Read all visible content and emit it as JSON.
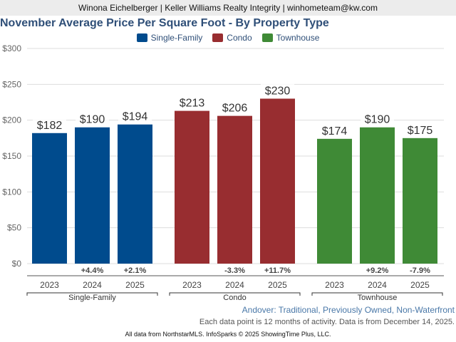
{
  "banner": "Winona Eichelberger | Keller Williams Realty Integrity | winhometeam@kw.com",
  "chart_data": {
    "type": "bar",
    "title": "November Average Price Per Square Foot - By Property Type",
    "xlabel": "",
    "ylabel": "",
    "ylim": [
      0,
      300
    ],
    "yticks": [
      0,
      50,
      100,
      150,
      200,
      250,
      300
    ],
    "ytick_labels": [
      "$0",
      "$50",
      "$100",
      "$150",
      "$200",
      "$250",
      "$300"
    ],
    "grid": true,
    "legend_position": "top-center",
    "categories": [
      "2023",
      "2024",
      "2025"
    ],
    "series": [
      {
        "name": "Single-Family",
        "color": "#004b8d",
        "values": [
          182,
          190,
          194
        ],
        "labels": [
          "$182",
          "$190",
          "$194"
        ],
        "changes": [
          "",
          "+4.4%",
          "+2.1%"
        ]
      },
      {
        "name": "Condo",
        "color": "#982d30",
        "values": [
          213,
          206,
          230
        ],
        "labels": [
          "$213",
          "$206",
          "$230"
        ],
        "changes": [
          "",
          "-3.3%",
          "+11.7%"
        ]
      },
      {
        "name": "Townhouse",
        "color": "#3f8a36",
        "values": [
          174,
          190,
          175
        ],
        "labels": [
          "$174",
          "$190",
          "$175"
        ],
        "changes": [
          "",
          "+9.2%",
          "-7.9%"
        ]
      }
    ]
  },
  "footer": {
    "subtitle": "Andover: Traditional, Previously Owned, Non-Waterfront",
    "note": "Each data point is 12 months of activity. Data is from December 14, 2025.",
    "credit": "All data from NorthstarMLS. InfoSparks © 2025 ShowingTime Plus, LLC."
  }
}
